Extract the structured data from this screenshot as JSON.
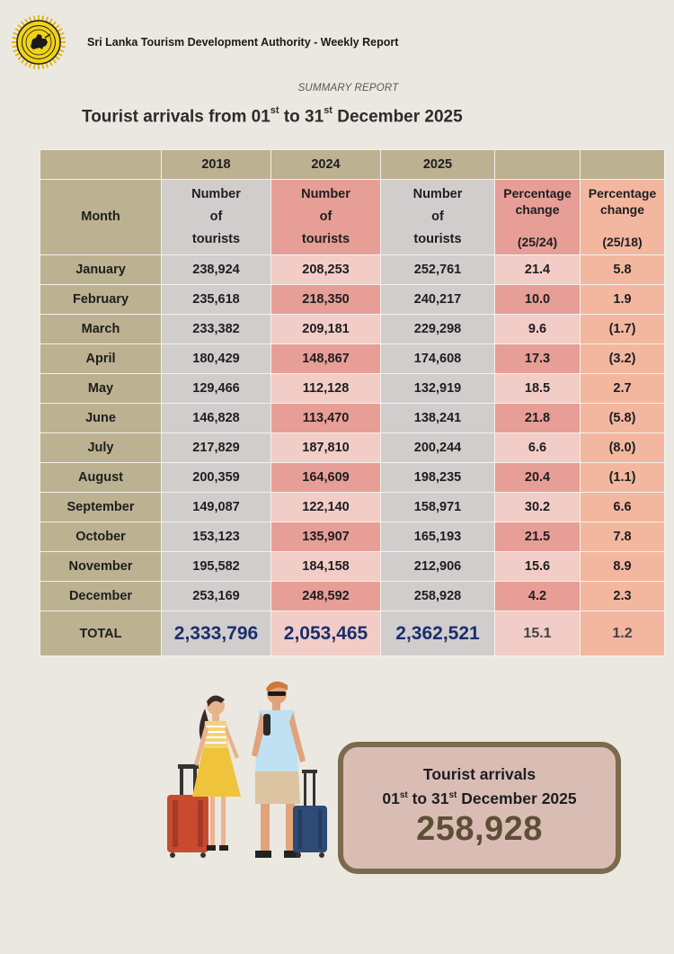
{
  "header": {
    "organization": "Sri Lanka Tourism Development Authority - Weekly Report",
    "logo_icon": "sri-lanka-lion-emblem"
  },
  "report": {
    "subtitle": "SUMMARY REPORT",
    "title_prefix": "Tourist arrivals from 01",
    "title_sup1": "st",
    "title_mid": " to 31",
    "title_sup2": "st",
    "title_suffix": " December 2025"
  },
  "table": {
    "years": [
      "2018",
      "2024",
      "2025"
    ],
    "month_header": "Month",
    "count_header": [
      "Number",
      "of",
      "tourists"
    ],
    "pct1_header": [
      "Percentage",
      "change",
      "(25/24)"
    ],
    "pct2_header": [
      "Percentage",
      "change",
      "(25/18)"
    ],
    "rows": [
      {
        "month": "January",
        "y2018": "238,924",
        "y2024": "208,253",
        "y2025": "252,761",
        "p1": "21.4",
        "p2": "5.8"
      },
      {
        "month": "February",
        "y2018": "235,618",
        "y2024": "218,350",
        "y2025": "240,217",
        "p1": "10.0",
        "p2": "1.9"
      },
      {
        "month": "March",
        "y2018": "233,382",
        "y2024": "209,181",
        "y2025": "229,298",
        "p1": "9.6",
        "p2": "(1.7)"
      },
      {
        "month": "April",
        "y2018": "180,429",
        "y2024": "148,867",
        "y2025": "174,608",
        "p1": "17.3",
        "p2": "(3.2)"
      },
      {
        "month": "May",
        "y2018": "129,466",
        "y2024": "112,128",
        "y2025": "132,919",
        "p1": "18.5",
        "p2": "2.7"
      },
      {
        "month": "June",
        "y2018": "146,828",
        "y2024": "113,470",
        "y2025": "138,241",
        "p1": "21.8",
        "p2": "(5.8)"
      },
      {
        "month": "July",
        "y2018": "217,829",
        "y2024": "187,810",
        "y2025": "200,244",
        "p1": "6.6",
        "p2": "(8.0)"
      },
      {
        "month": "August",
        "y2018": "200,359",
        "y2024": "164,609",
        "y2025": "198,235",
        "p1": "20.4",
        "p2": "(1.1)"
      },
      {
        "month": "September",
        "y2018": "149,087",
        "y2024": "122,140",
        "y2025": "158,971",
        "p1": "30.2",
        "p2": "6.6"
      },
      {
        "month": "October",
        "y2018": "153,123",
        "y2024": "135,907",
        "y2025": "165,193",
        "p1": "21.5",
        "p2": "7.8"
      },
      {
        "month": "November",
        "y2018": "195,582",
        "y2024": "184,158",
        "y2025": "212,906",
        "p1": "15.6",
        "p2": "8.9"
      },
      {
        "month": "December",
        "y2018": "253,169",
        "y2024": "248,592",
        "y2025": "258,928",
        "p1": "4.2",
        "p2": "2.3"
      }
    ],
    "total": {
      "label": "TOTAL",
      "y2018": "2,333,796",
      "y2024": "2,053,465",
      "y2025": "2,362,521",
      "p1": "15.1",
      "p2": "1.2"
    }
  },
  "summary_box": {
    "heading": "Tourist arrivals",
    "period_a": "01",
    "period_sup1": "st",
    "period_b": " to 31",
    "period_sup2": "st",
    "period_c": " December 2025",
    "value": "258,928"
  },
  "illustration": "travellers-with-suitcases",
  "colors": {
    "background": "#ebe8e1",
    "khaki": "#bcb190",
    "grey": "#d2cdcd",
    "pink_dark": "#e79e96",
    "pink_light": "#f2cdc7",
    "peach": "#f3b7a0",
    "total_blue": "#1b2f6e",
    "box_border": "#7b6a4c"
  }
}
